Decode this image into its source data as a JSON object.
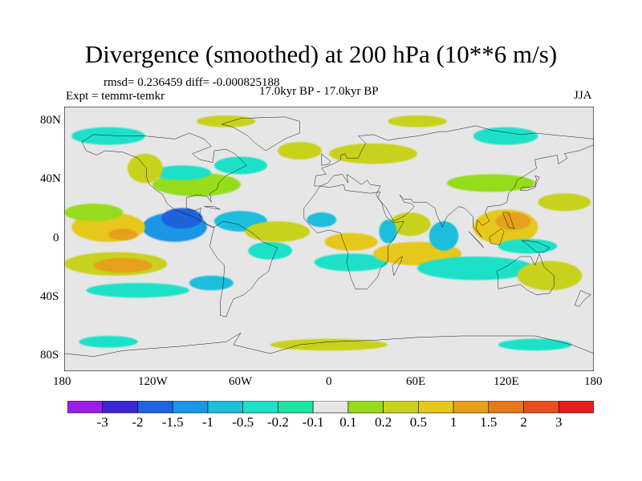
{
  "title": "Divergence (smoothed) at 200 hPa (10**6 m/s)",
  "stats": "rmsd= 0.236459 diff= -0.000825188",
  "experiment": "Expt = temmr-temkr",
  "period": "17.0kyr BP - 17.0kyr BP",
  "season": "JJA",
  "lat_ticks": [
    "80N",
    "40N",
    "0",
    "40S",
    "80S"
  ],
  "lon_ticks": [
    "180",
    "120W",
    "60W",
    "0",
    "60E",
    "120E",
    "180"
  ],
  "colorbar": {
    "colors": [
      "#9b1ee6",
      "#3c28d2",
      "#1e64dc",
      "#1e96e6",
      "#1ebedc",
      "#1ee1c8",
      "#1ee6a0",
      "#e6e6e6",
      "#96dc1e",
      "#c8d21e",
      "#e6c81e",
      "#e6a01e",
      "#e6781e",
      "#e6501e",
      "#e61e1e"
    ],
    "labels": [
      "-3",
      "-2",
      "-1.5",
      "-1",
      "-0.5",
      "-0.2",
      "-0.1",
      "0.1",
      "0.2",
      "0.5",
      "1",
      "1.5",
      "2",
      "3"
    ]
  },
  "field": {
    "neutral_color": "#e6e6e6",
    "blobs": [
      {
        "lon": -105,
        "lat": 8,
        "rlon": 22,
        "rlat": 10,
        "level": 3
      },
      {
        "lon": -100,
        "lat": 14,
        "rlon": 14,
        "rlat": 7,
        "level": 2
      },
      {
        "lon": -60,
        "lat": 12,
        "rlon": 18,
        "rlat": 7,
        "level": 4
      },
      {
        "lon": -150,
        "lat": 8,
        "rlon": 25,
        "rlat": 10,
        "level": 10
      },
      {
        "lon": -140,
        "lat": 3,
        "rlon": 10,
        "rlat": 4,
        "level": 11
      },
      {
        "lon": -145,
        "lat": -17,
        "rlon": 35,
        "rlat": 8,
        "level": 9
      },
      {
        "lon": -140,
        "lat": -18,
        "rlon": 20,
        "rlat": 5,
        "level": 11
      },
      {
        "lon": -160,
        "lat": 18,
        "rlon": 20,
        "rlat": 6,
        "level": 8
      },
      {
        "lon": -130,
        "lat": -35,
        "rlon": 35,
        "rlat": 5,
        "level": 5
      },
      {
        "lon": -80,
        "lat": -30,
        "rlon": 15,
        "rlat": 5,
        "level": 4
      },
      {
        "lon": -40,
        "lat": -8,
        "rlon": 15,
        "rlat": 6,
        "level": 5
      },
      {
        "lon": -35,
        "lat": 5,
        "rlon": 22,
        "rlat": 7,
        "level": 9
      },
      {
        "lon": -5,
        "lat": 13,
        "rlon": 10,
        "rlat": 5,
        "level": 4
      },
      {
        "lon": 15,
        "lat": -2,
        "rlon": 18,
        "rlat": 6,
        "level": 10
      },
      {
        "lon": 15,
        "lat": -16,
        "rlon": 25,
        "rlat": 6,
        "level": 5
      },
      {
        "lon": 60,
        "lat": -10,
        "rlon": 30,
        "rlat": 8,
        "level": 10
      },
      {
        "lon": 55,
        "lat": 10,
        "rlon": 14,
        "rlat": 8,
        "level": 9
      },
      {
        "lon": 40,
        "lat": 5,
        "rlon": 6,
        "rlat": 8,
        "level": 4
      },
      {
        "lon": 78,
        "lat": 2,
        "rlon": 10,
        "rlat": 10,
        "level": 4
      },
      {
        "lon": 100,
        "lat": -20,
        "rlon": 40,
        "rlat": 8,
        "level": 5
      },
      {
        "lon": 120,
        "lat": 8,
        "rlon": 22,
        "rlat": 12,
        "level": 10
      },
      {
        "lon": 125,
        "lat": 12,
        "rlon": 12,
        "rlat": 6,
        "level": 11
      },
      {
        "lon": 150,
        "lat": -25,
        "rlon": 22,
        "rlat": 10,
        "level": 9
      },
      {
        "lon": 135,
        "lat": -5,
        "rlon": 20,
        "rlat": 5,
        "level": 5
      },
      {
        "lon": 160,
        "lat": 25,
        "rlon": 18,
        "rlat": 6,
        "level": 9
      },
      {
        "lon": 110,
        "lat": 38,
        "rlon": 30,
        "rlat": 6,
        "level": 8
      },
      {
        "lon": -90,
        "lat": 37,
        "rlon": 30,
        "rlat": 8,
        "level": 8
      },
      {
        "lon": -100,
        "lat": 45,
        "rlon": 20,
        "rlat": 5,
        "level": 5
      },
      {
        "lon": -125,
        "lat": 48,
        "rlon": 12,
        "rlat": 10,
        "level": 9
      },
      {
        "lon": -60,
        "lat": 50,
        "rlon": 18,
        "rlat": 6,
        "level": 5
      },
      {
        "lon": -20,
        "lat": 60,
        "rlon": 15,
        "rlat": 6,
        "level": 9
      },
      {
        "lon": 30,
        "lat": 58,
        "rlon": 30,
        "rlat": 7,
        "level": 9
      },
      {
        "lon": -150,
        "lat": 70,
        "rlon": 25,
        "rlat": 6,
        "level": 5
      },
      {
        "lon": 120,
        "lat": 70,
        "rlon": 22,
        "rlat": 6,
        "level": 5
      },
      {
        "lon": -70,
        "lat": 80,
        "rlon": 20,
        "rlat": 4,
        "level": 9
      },
      {
        "lon": 60,
        "lat": 80,
        "rlon": 20,
        "rlat": 4,
        "level": 9
      },
      {
        "lon": 0,
        "lat": -72,
        "rlon": 40,
        "rlat": 4,
        "level": 9
      },
      {
        "lon": -150,
        "lat": -70,
        "rlon": 20,
        "rlat": 4,
        "level": 5
      },
      {
        "lon": 140,
        "lat": -72,
        "rlon": 25,
        "rlat": 4,
        "level": 5
      }
    ]
  },
  "coastlines": [
    [
      [
        -168,
        66
      ],
      [
        -160,
        71
      ],
      [
        -140,
        70
      ],
      [
        -125,
        70
      ],
      [
        -105,
        68
      ],
      [
        -95,
        72
      ],
      [
        -85,
        68
      ],
      [
        -80,
        63
      ],
      [
        -93,
        58
      ],
      [
        -88,
        54
      ],
      [
        -79,
        52
      ],
      [
        -78,
        60
      ],
      [
        -70,
        61
      ],
      [
        -64,
        58
      ],
      [
        -60,
        54
      ],
      [
        -56,
        50
      ],
      [
        -66,
        45
      ],
      [
        -70,
        43
      ],
      [
        -75,
        38
      ],
      [
        -76,
        34
      ],
      [
        -81,
        31
      ],
      [
        -80,
        25
      ],
      [
        -83,
        29
      ],
      [
        -90,
        30
      ],
      [
        -97,
        28
      ],
      [
        -97,
        21
      ],
      [
        -92,
        19
      ],
      [
        -87,
        21
      ],
      [
        -88,
        16
      ],
      [
        -83,
        10
      ],
      [
        -78,
        8
      ],
      [
        -80,
        8
      ],
      [
        -85,
        11
      ],
      [
        -92,
        15
      ],
      [
        -105,
        20
      ],
      [
        -110,
        24
      ],
      [
        -113,
        30
      ],
      [
        -117,
        33
      ],
      [
        -122,
        37
      ],
      [
        -124,
        42
      ],
      [
        -124,
        48
      ],
      [
        -130,
        55
      ],
      [
        -140,
        59
      ],
      [
        -152,
        60
      ],
      [
        -158,
        57
      ],
      [
        -165,
        60
      ],
      [
        -168,
        66
      ]
    ],
    [
      [
        -78,
        8
      ],
      [
        -72,
        12
      ],
      [
        -62,
        10
      ],
      [
        -52,
        4
      ],
      [
        -45,
        -2
      ],
      [
        -35,
        -6
      ],
      [
        -39,
        -15
      ],
      [
        -41,
        -22
      ],
      [
        -48,
        -27
      ],
      [
        -53,
        -34
      ],
      [
        -58,
        -38
      ],
      [
        -65,
        -41
      ],
      [
        -68,
        -48
      ],
      [
        -70,
        -53
      ],
      [
        -74,
        -52
      ],
      [
        -74,
        -43
      ],
      [
        -72,
        -32
      ],
      [
        -71,
        -18
      ],
      [
        -76,
        -13
      ],
      [
        -81,
        -5
      ],
      [
        -80,
        0
      ],
      [
        -78,
        8
      ]
    ],
    [
      [
        -10,
        36
      ],
      [
        -9,
        43
      ],
      [
        -2,
        44
      ],
      [
        -5,
        48
      ],
      [
        3,
        51
      ],
      [
        8,
        54
      ],
      [
        8,
        57
      ],
      [
        11,
        58
      ],
      [
        12,
        55
      ],
      [
        20,
        55
      ],
      [
        22,
        60
      ],
      [
        25,
        65
      ],
      [
        20,
        70
      ],
      [
        30,
        71
      ],
      [
        40,
        67
      ],
      [
        45,
        68
      ],
      [
        60,
        70
      ],
      [
        75,
        73
      ],
      [
        80,
        73
      ],
      [
        100,
        77
      ],
      [
        110,
        74
      ],
      [
        130,
        71
      ],
      [
        140,
        72
      ],
      [
        160,
        70
      ],
      [
        180,
        68
      ],
      [
        180,
        64
      ],
      [
        170,
        60
      ],
      [
        160,
        58
      ],
      [
        162,
        55
      ],
      [
        156,
        51
      ],
      [
        155,
        57
      ],
      [
        140,
        54
      ],
      [
        141,
        48
      ],
      [
        133,
        43
      ],
      [
        128,
        40
      ],
      [
        126,
        35
      ],
      [
        122,
        31
      ],
      [
        121,
        25
      ],
      [
        117,
        23
      ],
      [
        108,
        22
      ],
      [
        106,
        18
      ],
      [
        109,
        12
      ],
      [
        104,
        9
      ],
      [
        101,
        13
      ],
      [
        100,
        7
      ],
      [
        104,
        1
      ],
      [
        98,
        8
      ],
      [
        98,
        15
      ],
      [
        92,
        21
      ],
      [
        88,
        22
      ],
      [
        80,
        15
      ],
      [
        77,
        8
      ],
      [
        73,
        17
      ],
      [
        72,
        21
      ],
      [
        66,
        25
      ],
      [
        57,
        25
      ],
      [
        56,
        27
      ],
      [
        51,
        27
      ],
      [
        48,
        30
      ],
      [
        51,
        25
      ],
      [
        56,
        24
      ],
      [
        58,
        22
      ],
      [
        52,
        16
      ],
      [
        44,
        12
      ],
      [
        39,
        21
      ],
      [
        33,
        28
      ],
      [
        35,
        32
      ],
      [
        28,
        31
      ],
      [
        20,
        32
      ],
      [
        11,
        33
      ],
      [
        10,
        37
      ],
      [
        0,
        35
      ],
      [
        -6,
        36
      ],
      [
        -10,
        30
      ],
      [
        -17,
        21
      ],
      [
        -17,
        14
      ],
      [
        -12,
        8
      ],
      [
        -8,
        4
      ],
      [
        0,
        6
      ],
      [
        8,
        4
      ],
      [
        9,
        0
      ],
      [
        13,
        -10
      ],
      [
        12,
        -16
      ],
      [
        15,
        -27
      ],
      [
        18,
        -34
      ],
      [
        26,
        -34
      ],
      [
        33,
        -26
      ],
      [
        35,
        -20
      ],
      [
        40,
        -15
      ],
      [
        40,
        -5
      ],
      [
        44,
        0
      ],
      [
        51,
        12
      ],
      [
        44,
        11
      ],
      [
        39,
        15
      ],
      [
        37,
        20
      ],
      [
        36,
        24
      ],
      [
        32,
        30
      ],
      [
        35,
        36
      ],
      [
        28,
        37
      ],
      [
        26,
        40
      ],
      [
        22,
        37
      ],
      [
        18,
        40
      ],
      [
        12,
        44
      ],
      [
        13,
        38
      ],
      [
        9,
        44
      ],
      [
        3,
        43
      ],
      [
        -1,
        38
      ],
      [
        -6,
        36
      ],
      [
        -10,
        36
      ]
    ],
    [
      [
        -5,
        50
      ],
      [
        0,
        51
      ],
      [
        1,
        53
      ],
      [
        -3,
        56
      ],
      [
        -5,
        58
      ],
      [
        -5,
        50
      ]
    ],
    [
      [
        -73,
        78
      ],
      [
        -60,
        82
      ],
      [
        -30,
        83
      ],
      [
        -20,
        80
      ],
      [
        -20,
        72
      ],
      [
        -30,
        68
      ],
      [
        -43,
        60
      ],
      [
        -50,
        65
      ],
      [
        -55,
        70
      ],
      [
        -65,
        76
      ],
      [
        -73,
        78
      ]
    ],
    [
      [
        114,
        -22
      ],
      [
        122,
        -18
      ],
      [
        130,
        -12
      ],
      [
        137,
        -12
      ],
      [
        140,
        -18
      ],
      [
        143,
        -10
      ],
      [
        146,
        -19
      ],
      [
        153,
        -25
      ],
      [
        153,
        -32
      ],
      [
        150,
        -37
      ],
      [
        141,
        -38
      ],
      [
        135,
        -35
      ],
      [
        130,
        -31
      ],
      [
        115,
        -34
      ],
      [
        115,
        -26
      ],
      [
        114,
        -22
      ]
    ],
    [
      [
        44,
        -25
      ],
      [
        49,
        -15
      ],
      [
        50,
        -12
      ],
      [
        48,
        -13
      ],
      [
        43,
        -18
      ],
      [
        44,
        -25
      ]
    ],
    [
      [
        95,
        5
      ],
      [
        105,
        -6
      ],
      [
        103,
        -3
      ],
      [
        98,
        2
      ],
      [
        95,
        5
      ]
    ],
    [
      [
        109,
        1
      ],
      [
        117,
        7
      ],
      [
        119,
        5
      ],
      [
        116,
        -4
      ],
      [
        110,
        -3
      ],
      [
        109,
        1
      ]
    ],
    [
      [
        131,
        -1
      ],
      [
        141,
        -2
      ],
      [
        150,
        -6
      ],
      [
        146,
        -9
      ],
      [
        141,
        -9
      ],
      [
        135,
        -4
      ],
      [
        131,
        -1
      ]
    ],
    [
      [
        130,
        33
      ],
      [
        131,
        35
      ],
      [
        136,
        35
      ],
      [
        140,
        36
      ],
      [
        141,
        41
      ],
      [
        140,
        43
      ],
      [
        143,
        42
      ],
      [
        141,
        38
      ],
      [
        140,
        35
      ],
      [
        135,
        33
      ],
      [
        130,
        33
      ]
    ],
    [
      [
        -180,
        -78
      ],
      [
        -160,
        -80
      ],
      [
        -140,
        -76
      ],
      [
        -100,
        -73
      ],
      [
        -70,
        -70
      ],
      [
        -60,
        -64
      ],
      [
        -65,
        -72
      ],
      [
        -40,
        -78
      ],
      [
        -20,
        -72
      ],
      [
        0,
        -70
      ],
      [
        30,
        -69
      ],
      [
        60,
        -67
      ],
      [
        90,
        -66
      ],
      [
        110,
        -66
      ],
      [
        140,
        -66
      ],
      [
        165,
        -72
      ],
      [
        180,
        -78
      ]
    ],
    [
      [
        171,
        -35
      ],
      [
        175,
        -37
      ],
      [
        178,
        -38
      ],
      [
        174,
        -41
      ],
      [
        170,
        -46
      ],
      [
        167,
        -45
      ],
      [
        171,
        -35
      ]
    ],
    [
      [
        118,
        18
      ],
      [
        122,
        18
      ],
      [
        124,
        12
      ],
      [
        126,
        7
      ],
      [
        122,
        8
      ],
      [
        118,
        18
      ]
    ],
    [
      [
        -85,
        22
      ],
      [
        -74,
        20
      ],
      [
        -78,
        22
      ],
      [
        -85,
        22
      ]
    ]
  ]
}
